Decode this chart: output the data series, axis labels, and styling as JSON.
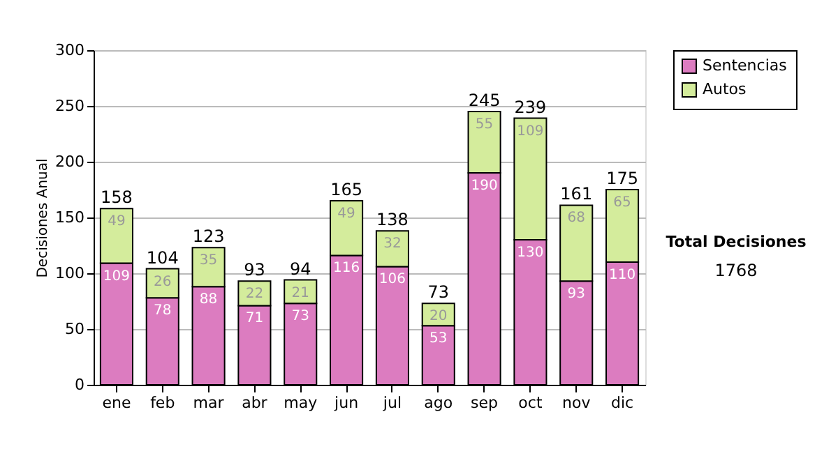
{
  "chart_data": {
    "type": "bar",
    "stacked": true,
    "ylabel": "Decisiones Anual",
    "categories": [
      "ene",
      "feb",
      "mar",
      "abr",
      "may",
      "jun",
      "jul",
      "ago",
      "sep",
      "oct",
      "nov",
      "dic"
    ],
    "series": [
      {
        "name": "Sentencias",
        "color": "#dc7cc0",
        "values": [
          109,
          78,
          88,
          71,
          73,
          116,
          106,
          53,
          190,
          130,
          93,
          110
        ]
      },
      {
        "name": "Autos",
        "color": "#d4ec9c",
        "values": [
          49,
          26,
          35,
          22,
          21,
          49,
          32,
          20,
          55,
          109,
          68,
          65
        ]
      }
    ],
    "totals": [
      "158",
      "104",
      "123",
      "93",
      "94",
      "165",
      "138",
      "73",
      "245",
      "239",
      "161",
      "175"
    ],
    "data_labels": true,
    "ylim": [
      0,
      300
    ],
    "yticks": [
      0,
      50,
      100,
      150,
      200,
      250,
      300
    ],
    "grid": "y",
    "legend": "right",
    "annotations": [
      "Total Decisiones",
      "1768"
    ]
  }
}
